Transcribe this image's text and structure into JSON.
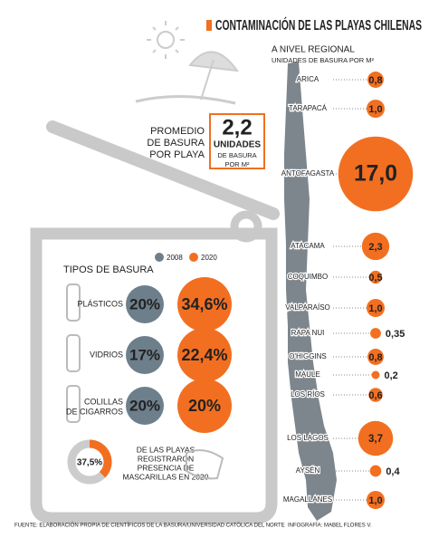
{
  "header": {
    "title": "CONTAMINACIÓN DE LAS PLAYAS CHILENAS"
  },
  "chart_data": {
    "type": "bubble",
    "title": "A NIVEL REGIONAL",
    "subtitle": "UNIDADES DE BASURA POR M²",
    "color": "#f26f21",
    "categories": [
      "ARICA",
      "TARAPACÁ",
      "ANTOFAGASTA",
      "ATACAMA",
      "COQUIMBO",
      "VALPARAÍSO",
      "RAPA NUI",
      "O'HIGGINS",
      "MAULE",
      "LOS RÍOS",
      "LOS LAGOS",
      "AYSÉN",
      "MAGALLANES"
    ],
    "values": [
      0.8,
      1.0,
      17.0,
      2.3,
      0.5,
      1.0,
      0.35,
      0.8,
      0.2,
      0.6,
      3.7,
      0.4,
      1.0
    ],
    "value_labels": [
      "0,8",
      "1,0",
      "17,0",
      "2,3",
      "0,5",
      "1,0",
      "0,35",
      "0,8",
      "0,2",
      "0,6",
      "3,7",
      "0,4",
      "1,0"
    ]
  },
  "average": {
    "lines": [
      "PROMEDIO",
      "DE BASURA",
      "POR PLAYA"
    ],
    "value": "2,2",
    "unit": "UNIDADES",
    "note": [
      "DE BASURA",
      "POR M²"
    ]
  },
  "trash_types": {
    "title": "TIPOS DE BASURA",
    "legend": [
      {
        "name": "2008",
        "color": "#6e7f8c"
      },
      {
        "name": "2020",
        "color": "#f26f21"
      }
    ],
    "rows": [
      {
        "name": [
          "PLÁSTICOS"
        ],
        "v2008": "20%",
        "v2020": "34,6%"
      },
      {
        "name": [
          "VIDRIOS"
        ],
        "v2008": "17%",
        "v2020": "22,4%"
      },
      {
        "name": [
          "COLILLAS",
          "DE CIGARROS"
        ],
        "v2008": "20%",
        "v2020": "20%"
      }
    ]
  },
  "masks": {
    "value": 37.5,
    "label": "37,5%",
    "text": [
      "DE LAS PLAYAS",
      "REGISTRARON",
      "PRESENCIA DE",
      "MASCARILLAS EN 2020"
    ]
  },
  "footer": {
    "source": "FUENTE: ELABORACIÓN PROPIA DE CIENTÍFICOS DE LA BASURA/UNIVERSIDAD CATÓLICA DEL NORTE",
    "credit": "INFOGRAFÍA: MABEL FLORES V."
  }
}
